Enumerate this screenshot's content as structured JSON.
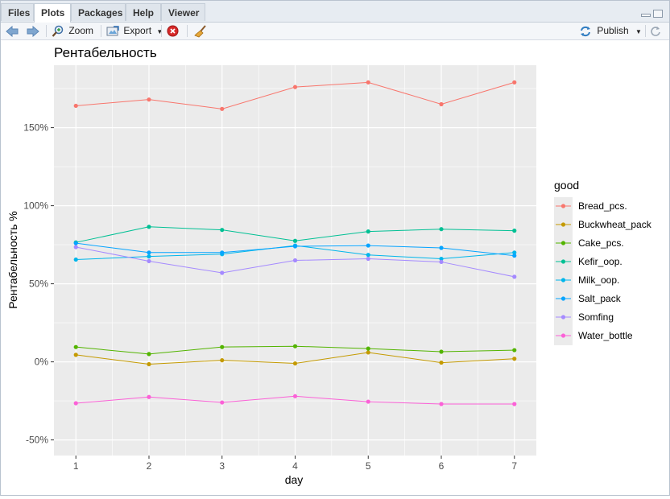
{
  "tabs": [
    {
      "label": "Files"
    },
    {
      "label": "Plots"
    },
    {
      "label": "Packages"
    },
    {
      "label": "Help"
    },
    {
      "label": "Viewer"
    }
  ],
  "toolbar": {
    "zoom_label": "Zoom",
    "export_label": "Export",
    "publish_label": "Publish"
  },
  "chart_data": {
    "type": "line",
    "title": "Рентабельность",
    "xlabel": "day",
    "ylabel": "Рентабельность %",
    "x": [
      1,
      2,
      3,
      4,
      5,
      6,
      7
    ],
    "xlim": [
      0.7,
      7.3
    ],
    "ylim": [
      -60,
      190
    ],
    "yticks": [
      -50,
      0,
      50,
      100,
      150
    ],
    "ytick_labels": [
      "-50%",
      "0%",
      "50%",
      "100%",
      "150%"
    ],
    "grid": true,
    "legend_title": "good",
    "legend_position": "right",
    "series": [
      {
        "name": "Bread_pcs.",
        "color": "#F8766D",
        "values": [
          164,
          168,
          162,
          176,
          179,
          165,
          179
        ]
      },
      {
        "name": "Buckwheat_pack",
        "color": "#C49A00",
        "values": [
          4.5,
          -1.5,
          1,
          -1,
          6,
          -0.5,
          2
        ]
      },
      {
        "name": "Cake_pcs.",
        "color": "#53B400",
        "values": [
          9.5,
          5,
          9.5,
          10,
          8.5,
          6.5,
          7.5
        ]
      },
      {
        "name": "Kefir_oop.",
        "color": "#00C094",
        "values": [
          76.5,
          86.5,
          84.5,
          77.5,
          83.5,
          85,
          84
        ]
      },
      {
        "name": "Milk_oop.",
        "color": "#00B6EB",
        "values": [
          65.5,
          67.5,
          69,
          74.5,
          68.5,
          66,
          70
        ]
      },
      {
        "name": "Salt_pack",
        "color": "#06A4FF",
        "values": [
          76,
          70,
          70,
          74,
          74.5,
          73,
          68
        ]
      },
      {
        "name": "Somfing",
        "color": "#A58AFF",
        "values": [
          73.5,
          64.5,
          57,
          65,
          66,
          64,
          54.5
        ]
      },
      {
        "name": "Water_bottle",
        "color": "#FB61D7",
        "values": [
          -26.5,
          -22.5,
          -26,
          -22,
          -25.5,
          -27,
          -27
        ]
      }
    ]
  }
}
